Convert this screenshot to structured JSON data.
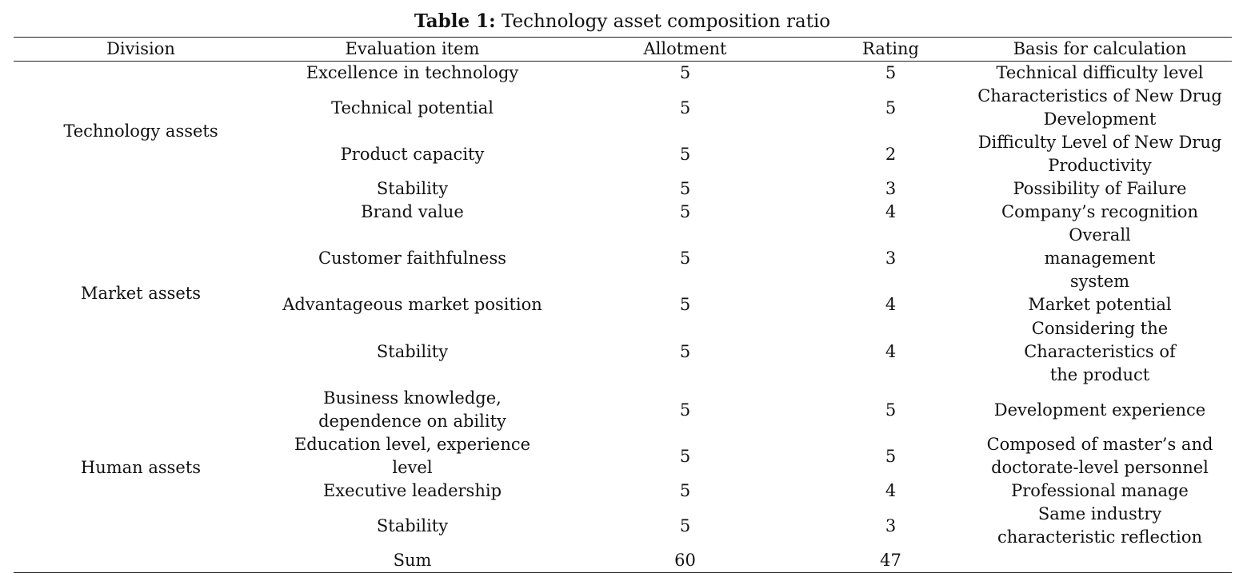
{
  "caption": {
    "label": "Table 1:",
    "text": " Technology asset composition ratio"
  },
  "headers": [
    "Division",
    "Evaluation item",
    "Allotment",
    "Rating",
    "Basis for calculation"
  ],
  "groups": [
    {
      "division": "Technology assets",
      "rows": [
        {
          "item": "Excellence in technology",
          "allotment": "5",
          "rating": "5",
          "basis": "Technical difficulty level"
        },
        {
          "item": "Technical potential",
          "allotment": "5",
          "rating": "5",
          "basis": "Characteristics of New Drug Development"
        },
        {
          "item": "Product capacity",
          "allotment": "5",
          "rating": "2",
          "basis": "Difficulty Level of New Drug Productivity"
        },
        {
          "item": "Stability",
          "allotment": "5",
          "rating": "3",
          "basis": "Possibility of Failure"
        }
      ]
    },
    {
      "division": "Market assets",
      "rows": [
        {
          "item": "Brand value",
          "allotment": "5",
          "rating": "4",
          "basis": "Company’s recognition"
        },
        {
          "item": "Customer faithfulness",
          "allotment": "5",
          "rating": "3",
          "basis": "Overall management system"
        },
        {
          "item": "Advantageous market position",
          "allotment": "5",
          "rating": "4",
          "basis": "Market potential"
        },
        {
          "item": "Stability",
          "allotment": "5",
          "rating": "4",
          "basis": "Considering the Characteristics of the product"
        }
      ]
    },
    {
      "division": "Human assets",
      "rows": [
        {
          "item": "Business knowledge, dependence on ability",
          "allotment": "5",
          "rating": "5",
          "basis": "Development experience"
        },
        {
          "item": "Education level, experience level",
          "allotment": "5",
          "rating": "5",
          "basis": "Composed of master’s and doctorate-level personnel"
        },
        {
          "item": "Executive leadership",
          "allotment": "5",
          "rating": "4",
          "basis": "Professional manage"
        },
        {
          "item": "Stability",
          "allotment": "5",
          "rating": "3",
          "basis": "Same industry characteristic reflection"
        }
      ]
    }
  ],
  "sum": {
    "label": "Sum",
    "allotment": "60",
    "rating": "47"
  }
}
